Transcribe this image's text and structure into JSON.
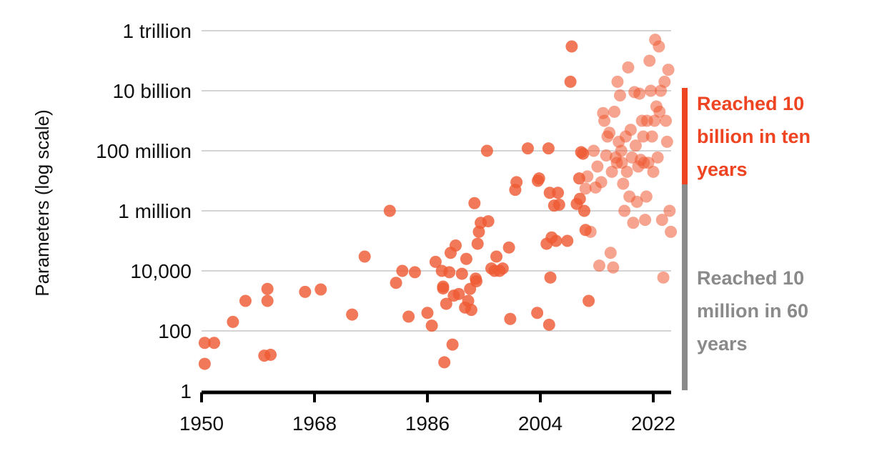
{
  "chart_data": {
    "type": "scatter",
    "ylabel": "Parameters (log scale)",
    "yscale": "log",
    "ylim": [
      1,
      3000000000000
    ],
    "xlim": [
      1950,
      2025
    ],
    "x_ticks": [
      1950,
      1968,
      1986,
      2004,
      2022
    ],
    "y_ticks": [
      {
        "value": 1,
        "label": "1"
      },
      {
        "value": 100,
        "label": "100"
      },
      {
        "value": 10000,
        "label": "10,000"
      },
      {
        "value": 1000000,
        "label": "1 million"
      },
      {
        "value": 100000000,
        "label": "100 million"
      },
      {
        "value": 10000000000,
        "label": "10 billion"
      },
      {
        "value": 1000000000000,
        "label": "1 trillion"
      }
    ],
    "grid": true,
    "marker_color": "#ee5a33",
    "series": [
      {
        "points": [
          [
            1950.5,
            40
          ],
          [
            1950.5,
            8
          ],
          [
            1952,
            40
          ],
          [
            1955,
            200
          ],
          [
            1957,
            1000
          ],
          [
            1960,
            15
          ],
          [
            1960.5,
            2500
          ],
          [
            1960.5,
            1000
          ],
          [
            1961,
            16
          ],
          [
            1966.5,
            2000
          ],
          [
            1969,
            2400
          ],
          [
            1974,
            350
          ],
          [
            1976,
            30000
          ],
          [
            1980,
            1000000
          ],
          [
            1981,
            4000
          ],
          [
            1982,
            10000
          ],
          [
            1983,
            300
          ],
          [
            1984,
            9000
          ],
          [
            1986,
            400
          ],
          [
            1986.7,
            150
          ],
          [
            1987.3,
            20000
          ],
          [
            1988.3,
            10000
          ],
          [
            1988.5,
            3000
          ],
          [
            1988.5,
            2600
          ],
          [
            1988.7,
            9
          ],
          [
            1989,
            800
          ],
          [
            1989.5,
            9000
          ],
          [
            1989.7,
            40000
          ],
          [
            1990,
            35
          ],
          [
            1990.2,
            1500
          ],
          [
            1990.5,
            70000
          ],
          [
            1991,
            1700
          ],
          [
            1991.5,
            8000
          ],
          [
            1992,
            600
          ],
          [
            1992.2,
            25000
          ],
          [
            1992.5,
            1000
          ],
          [
            1992.8,
            2500
          ],
          [
            1993,
            500
          ],
          [
            1993.5,
            1800000
          ],
          [
            1993.7,
            5500
          ],
          [
            1993.8,
            4500
          ],
          [
            1994,
            80000
          ],
          [
            1994.2,
            200000
          ],
          [
            1994.5,
            400000
          ],
          [
            1995.5,
            100000000
          ],
          [
            1995.7,
            450000
          ],
          [
            1996.2,
            12000
          ],
          [
            1996.7,
            10000
          ],
          [
            1997,
            30000
          ],
          [
            1997.5,
            10000
          ],
          [
            1998,
            12000
          ],
          [
            1999,
            60000
          ],
          [
            1999.2,
            250
          ],
          [
            2000,
            5000000
          ],
          [
            2000.2,
            9000000
          ],
          [
            2002,
            120000000
          ],
          [
            2003.5,
            400
          ],
          [
            2003.6,
            10000000
          ],
          [
            2003.8,
            12000000
          ],
          [
            2005,
            80000
          ],
          [
            2005.3,
            120000000
          ],
          [
            2005.4,
            160
          ],
          [
            2005.5,
            4000000
          ],
          [
            2005.6,
            6000
          ],
          [
            2005.8,
            130000
          ],
          [
            2006.2,
            1500000
          ],
          [
            2006.5,
            100000
          ],
          [
            2006.8,
            4000000
          ],
          [
            2007,
            1600000
          ],
          [
            2008.3,
            100000
          ],
          [
            2008.8,
            20000000000
          ],
          [
            2009,
            300000000000
          ],
          [
            2009.8,
            1700000
          ],
          [
            2010.2,
            12000000
          ],
          [
            2010.3,
            2500000
          ],
          [
            2010.5,
            90000000
          ],
          [
            2010.8,
            80000000
          ],
          [
            2011,
            1000000
          ],
          [
            2011.2,
            230000
          ],
          [
            2011.7,
            1000
          ]
        ]
      },
      {
        "points": [
          [
            2011.2,
            5500000
          ],
          [
            2011.5,
            14000000
          ],
          [
            2012,
            200000
          ],
          [
            2012.5,
            100000000
          ],
          [
            2012.8,
            6000000
          ],
          [
            2013.1,
            30000000
          ],
          [
            2013.4,
            15000
          ],
          [
            2013.7,
            9000000
          ],
          [
            2014,
            1800000000
          ],
          [
            2014.2,
            1000000000
          ],
          [
            2014.5,
            70000000
          ],
          [
            2014.7,
            300000000
          ],
          [
            2015,
            400000000
          ],
          [
            2015.2,
            40000
          ],
          [
            2015.4,
            20000000
          ],
          [
            2015.6,
            13000
          ],
          [
            2015.8,
            2000000000
          ],
          [
            2016,
            60000000
          ],
          [
            2016.2,
            40000000
          ],
          [
            2016.3,
            20000000000
          ],
          [
            2016.5,
            200000000
          ],
          [
            2016.7,
            7000000000
          ],
          [
            2016.9,
            100000000
          ],
          [
            2017,
            40000000
          ],
          [
            2017.2,
            8000000
          ],
          [
            2017.4,
            1000000
          ],
          [
            2017.6,
            300000000
          ],
          [
            2017.8,
            20000000
          ],
          [
            2018,
            60000000000
          ],
          [
            2018.2,
            3000000
          ],
          [
            2018.4,
            500000000
          ],
          [
            2018.6,
            60000000
          ],
          [
            2018.8,
            400000
          ],
          [
            2019,
            9000000000
          ],
          [
            2019.2,
            150000000
          ],
          [
            2019.4,
            2000000
          ],
          [
            2019.6,
            30000000
          ],
          [
            2019.8,
            8000000000
          ],
          [
            2020,
            50000000
          ],
          [
            2020.2,
            1000000000
          ],
          [
            2020.4,
            300000000
          ],
          [
            2020.5,
            40000000
          ],
          [
            2020.7,
            500000
          ],
          [
            2020.9,
            3000000
          ],
          [
            2021,
            1000000000
          ],
          [
            2021.2,
            40000000
          ],
          [
            2021.4,
            100000000000
          ],
          [
            2021.6,
            10000000000
          ],
          [
            2021.8,
            300000000
          ],
          [
            2022,
            20000000
          ],
          [
            2022.2,
            1000000000
          ],
          [
            2022.3,
            500000000000
          ],
          [
            2022.5,
            3000000000
          ],
          [
            2022.7,
            60000000
          ],
          [
            2022.9,
            300000000000
          ],
          [
            2023,
            2000000000
          ],
          [
            2023.2,
            10000000000
          ],
          [
            2023.4,
            500000
          ],
          [
            2023.6,
            6000
          ],
          [
            2023.8,
            20000000000
          ],
          [
            2024,
            1000000000
          ],
          [
            2024.2,
            200000000
          ],
          [
            2024.4,
            50000000000
          ],
          [
            2024.6,
            1000000
          ],
          [
            2024.8,
            200000
          ]
        ]
      }
    ],
    "annotations": [
      {
        "text": "Reached 10 billion in ten years",
        "color": "#ee4422"
      },
      {
        "text": "Reached 10 million in 60 years",
        "color": "#8a8a8a"
      }
    ]
  }
}
